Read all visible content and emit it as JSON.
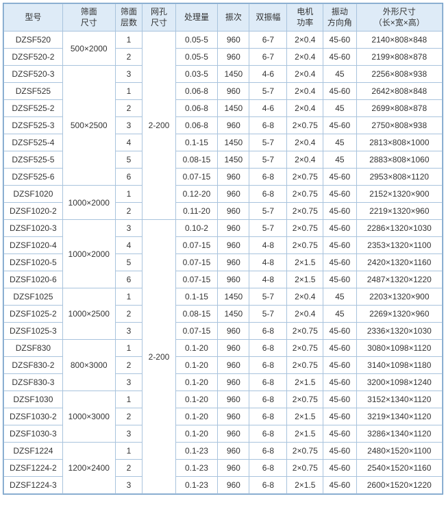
{
  "headers": {
    "model": "型号",
    "screen_size": "筛面\n尺寸",
    "layers": "筛面\n层数",
    "mesh": "网孔\n尺寸",
    "capacity": "处理量",
    "frequency": "振次",
    "amplitude": "双振幅",
    "power": "电机\n功率",
    "angle": "振动\n方向角",
    "dimensions": "外形尺寸\n（长×宽×高）"
  },
  "colors": {
    "header_bg": "#deebf7",
    "border": "#a8c3dd",
    "outer_border": "#6b99c4",
    "text": "#333333",
    "row_bg": "#ffffff"
  },
  "mesh_value": "2-200",
  "groups": [
    {
      "screen_size": "500×2000",
      "rows": [
        {
          "model": "DZSF520",
          "layers": "1",
          "capacity": "0.05-5",
          "freq": "960",
          "amp": "6-7",
          "power": "2×0.4",
          "angle": "45-60",
          "dim": "2140×808×848"
        },
        {
          "model": "DZSF520-2",
          "layers": "2",
          "capacity": "0.05-5",
          "freq": "960",
          "amp": "6-7",
          "power": "2×0.4",
          "angle": "45-60",
          "dim": "2199×808×878"
        }
      ]
    },
    {
      "screen_size_split": true,
      "first_row_own_size": true,
      "rows": [
        {
          "model": "DZSF520-3",
          "layers": "3",
          "capacity": "0.03-5",
          "freq": "1450",
          "amp": "4-6",
          "power": "2×0.4",
          "angle": "45",
          "dim": "2256×808×938"
        }
      ]
    },
    {
      "screen_size": "500×2500",
      "rows": [
        {
          "model": "DZSF525",
          "layers": "1",
          "capacity": "0.06-8",
          "freq": "960",
          "amp": "5-7",
          "power": "2×0.4",
          "angle": "45-60",
          "dim": "2642×808×848"
        },
        {
          "model": "DZSF525-2",
          "layers": "2",
          "capacity": "0.06-8",
          "freq": "1450",
          "amp": "4-6",
          "power": "2×0.4",
          "angle": "45",
          "dim": "2699×808×878"
        },
        {
          "model": "DZSF525-3",
          "layers": "3",
          "capacity": "0.06-8",
          "freq": "960",
          "amp": "6-8",
          "power": "2×0.75",
          "angle": "45-60",
          "dim": "2750×808×938"
        },
        {
          "model": "DZSF525-4",
          "layers": "4",
          "capacity": "0.1-15",
          "freq": "1450",
          "amp": "5-7",
          "power": "2×0.4",
          "angle": "45",
          "dim": "2813×808×1000"
        },
        {
          "model": "DZSF525-5",
          "layers": "5",
          "capacity": "0.08-15",
          "freq": "1450",
          "amp": "5-7",
          "power": "2×0.4",
          "angle": "45",
          "dim": "2883×808×1060"
        },
        {
          "model": "DZSF525-6",
          "layers": "6",
          "capacity": "0.07-15",
          "freq": "960",
          "amp": "6-8",
          "power": "2×0.75",
          "angle": "45-60",
          "dim": "2953×808×1120"
        }
      ]
    },
    {
      "screen_size": "1000×2000",
      "rows": [
        {
          "model": "DZSF1020",
          "layers": "1",
          "capacity": "0.12-20",
          "freq": "960",
          "amp": "6-8",
          "power": "2×0.75",
          "angle": "45-60",
          "dim": "2152×1320×900"
        },
        {
          "model": "DZSF1020-2",
          "layers": "2",
          "capacity": "0.11-20",
          "freq": "960",
          "amp": "5-7",
          "power": "2×0.75",
          "angle": "45-60",
          "dim": "2219×1320×960"
        }
      ]
    },
    {
      "screen_size": "1000×2000",
      "rows": [
        {
          "model": "DZSF1020-3",
          "layers": "3",
          "capacity": "0.10-2",
          "freq": "960",
          "amp": "5-7",
          "power": "2×0.75",
          "angle": "45-60",
          "dim": "2286×1320×1030"
        },
        {
          "model": "DZSF1020-4",
          "layers": "4",
          "capacity": "0.07-15",
          "freq": "960",
          "amp": "4-8",
          "power": "2×0.75",
          "angle": "45-60",
          "dim": "2353×1320×1100"
        },
        {
          "model": "DZSF1020-5",
          "layers": "5",
          "capacity": "0.07-15",
          "freq": "960",
          "amp": "4-8",
          "power": "2×1.5",
          "angle": "45-60",
          "dim": "2420×1320×1160"
        },
        {
          "model": "DZSF1020-6",
          "layers": "6",
          "capacity": "0.07-15",
          "freq": "960",
          "amp": "4-8",
          "power": "2×1.5",
          "angle": "45-60",
          "dim": "2487×1320×1220"
        }
      ]
    },
    {
      "screen_size": "1000×2500",
      "rows": [
        {
          "model": "DZSF1025",
          "layers": "1",
          "capacity": "0.1-15",
          "freq": "1450",
          "amp": "5-7",
          "power": "2×0.4",
          "angle": "45",
          "dim": "2203×1320×900"
        },
        {
          "model": "DZSF1025-2",
          "layers": "2",
          "capacity": "0.08-15",
          "freq": "1450",
          "amp": "5-7",
          "power": "2×0.4",
          "angle": "45",
          "dim": "2269×1320×960"
        },
        {
          "model": "DZSF1025-3",
          "layers": "3",
          "capacity": "0.07-15",
          "freq": "960",
          "amp": "6-8",
          "power": "2×0.75",
          "angle": "45-60",
          "dim": "2336×1320×1030"
        }
      ]
    },
    {
      "screen_size": "800×3000",
      "rows": [
        {
          "model": "DZSF830",
          "layers": "1",
          "capacity": "0.1-20",
          "freq": "960",
          "amp": "6-8",
          "power": "2×0.75",
          "angle": "45-60",
          "dim": "3080×1098×1120"
        },
        {
          "model": "DZSF830-2",
          "layers": "2",
          "capacity": "0.1-20",
          "freq": "960",
          "amp": "6-8",
          "power": "2×0.75",
          "angle": "45-60",
          "dim": "3140×1098×1180"
        },
        {
          "model": "DZSF830-3",
          "layers": "3",
          "capacity": "0.1-20",
          "freq": "960",
          "amp": "6-8",
          "power": "2×1.5",
          "angle": "45-60",
          "dim": "3200×1098×1240"
        }
      ]
    },
    {
      "screen_size": "1000×3000",
      "rows": [
        {
          "model": "DZSF1030",
          "layers": "1",
          "capacity": "0.1-20",
          "freq": "960",
          "amp": "6-8",
          "power": "2×0.75",
          "angle": "45-60",
          "dim": "3152×1340×1120"
        },
        {
          "model": "DZSF1030-2",
          "layers": "2",
          "capacity": "0.1-20",
          "freq": "960",
          "amp": "6-8",
          "power": "2×1.5",
          "angle": "45-60",
          "dim": "3219×1340×1120"
        },
        {
          "model": "DZSF1030-3",
          "layers": "3",
          "capacity": "0.1-20",
          "freq": "960",
          "amp": "6-8",
          "power": "2×1.5",
          "angle": "45-60",
          "dim": "3286×1340×1120"
        }
      ]
    },
    {
      "screen_size": "1200×2400",
      "rows": [
        {
          "model": "DZSF1224",
          "layers": "1",
          "capacity": "0.1-23",
          "freq": "960",
          "amp": "6-8",
          "power": "2×0.75",
          "angle": "45-60",
          "dim": "2480×1520×1100"
        },
        {
          "model": "DZSF1224-2",
          "layers": "2",
          "capacity": "0.1-23",
          "freq": "960",
          "amp": "6-8",
          "power": "2×0.75",
          "angle": "45-60",
          "dim": "2540×1520×1160"
        },
        {
          "model": "DZSF1224-3",
          "layers": "3",
          "capacity": "0.1-23",
          "freq": "960",
          "amp": "6-8",
          "power": "2×1.5",
          "angle": "45-60",
          "dim": "2600×1520×1220"
        }
      ]
    }
  ]
}
